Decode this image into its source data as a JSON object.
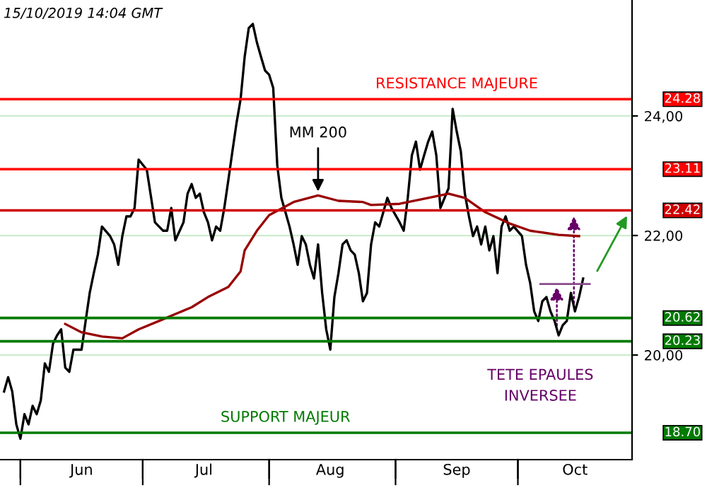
{
  "chart_data": {
    "type": "line",
    "annotations": [
      "15/10/2019 14:04 GMT",
      {
        "text": "MM 200",
        "x": "2019-08-13",
        "y": 22.67
      },
      {
        "text": "RESISTANCE MAJEURE",
        "x": "2019-09-16",
        "y": 24.28
      },
      {
        "text": "SUPPORT MAJEUR",
        "x": "2019-08-05",
        "y": 18.7
      },
      "TETE EPAULES\nINVERSEE"
    ],
    "series": [
      {
        "color": "#000000",
        "x": [
          "2019-05-28",
          "2019-05-29",
          "2019-05-30",
          "2019-05-31",
          "2019-06-01",
          "2019-06-02",
          "2019-06-03",
          "2019-06-04",
          "2019-06-05",
          "2019-06-06",
          "2019-06-07",
          "2019-06-08",
          "2019-06-09",
          "2019-06-10",
          "2019-06-11",
          "2019-06-12",
          "2019-06-13",
          "2019-06-14",
          "2019-06-16",
          "2019-06-17",
          "2019-06-18",
          "2019-06-19",
          "2019-06-20",
          "2019-06-21",
          "2019-06-23",
          "2019-06-24",
          "2019-06-25",
          "2019-06-26",
          "2019-06-27",
          "2019-06-28",
          "2019-06-29",
          "2019-06-30",
          "2019-07-02",
          "2019-07-04",
          "2019-07-05",
          "2019-07-06",
          "2019-07-07",
          "2019-07-08",
          "2019-07-09",
          "2019-07-11",
          "2019-07-12",
          "2019-07-13",
          "2019-07-14",
          "2019-07-15",
          "2019-07-16",
          "2019-07-17",
          "2019-07-18",
          "2019-07-19",
          "2019-07-20",
          "2019-07-21",
          "2019-07-22",
          "2019-07-23",
          "2019-07-24",
          "2019-07-25",
          "2019-07-26",
          "2019-07-27",
          "2019-07-28",
          "2019-07-29",
          "2019-07-30",
          "2019-07-31",
          "2019-08-01",
          "2019-08-02",
          "2019-08-03",
          "2019-08-04",
          "2019-08-05",
          "2019-08-06",
          "2019-08-07",
          "2019-08-08",
          "2019-08-09",
          "2019-08-10",
          "2019-08-11",
          "2019-08-12",
          "2019-08-13",
          "2019-08-14",
          "2019-08-15",
          "2019-08-16",
          "2019-08-17",
          "2019-08-18",
          "2019-08-19",
          "2019-08-20",
          "2019-08-21",
          "2019-08-22",
          "2019-08-23",
          "2019-08-24",
          "2019-08-25",
          "2019-08-26",
          "2019-08-27",
          "2019-08-28",
          "2019-08-29",
          "2019-08-30",
          "2019-08-31",
          "2019-09-02",
          "2019-09-03",
          "2019-09-04",
          "2019-09-05",
          "2019-09-06",
          "2019-09-07",
          "2019-09-08",
          "2019-09-09",
          "2019-09-10",
          "2019-09-11",
          "2019-09-12",
          "2019-09-14",
          "2019-09-15",
          "2019-09-16",
          "2019-09-17",
          "2019-09-18",
          "2019-09-19",
          "2019-09-20",
          "2019-09-21",
          "2019-09-22",
          "2019-09-23",
          "2019-09-24",
          "2019-09-25",
          "2019-09-26",
          "2019-09-27",
          "2019-09-28",
          "2019-09-29",
          "2019-09-30",
          "2019-10-02",
          "2019-10-03",
          "2019-10-04",
          "2019-10-05",
          "2019-10-06",
          "2019-10-07",
          "2019-10-08",
          "2019-10-09",
          "2019-10-10",
          "2019-10-11",
          "2019-10-12",
          "2019-10-13",
          "2019-10-14",
          "2019-10-15",
          "2019-10-16",
          "2019-10-17"
        ],
        "values": [
          19.39,
          19.63,
          19.39,
          18.84,
          18.6,
          19.01,
          18.84,
          19.15,
          19.01,
          19.24,
          19.86,
          19.72,
          20.19,
          20.33,
          20.43,
          19.79,
          19.72,
          20.09,
          20.09,
          20.57,
          21.04,
          21.37,
          21.68,
          22.15,
          21.99,
          21.85,
          21.51,
          21.99,
          22.32,
          22.32,
          22.46,
          23.27,
          23.1,
          22.22,
          22.15,
          22.08,
          22.08,
          22.46,
          21.92,
          22.22,
          22.7,
          22.86,
          22.63,
          22.7,
          22.39,
          22.22,
          21.92,
          22.15,
          22.08,
          22.46,
          22.93,
          23.41,
          23.88,
          24.28,
          24.99,
          25.47,
          25.54,
          25.23,
          24.99,
          24.76,
          24.69,
          24.47,
          23.17,
          22.63,
          22.39,
          22.15,
          21.85,
          21.51,
          21.99,
          21.85,
          21.51,
          21.28,
          21.85,
          21.04,
          20.43,
          20.09,
          20.97,
          21.37,
          21.85,
          21.92,
          21.75,
          21.68,
          21.37,
          20.9,
          21.04,
          21.85,
          22.22,
          22.15,
          22.39,
          22.63,
          22.46,
          22.22,
          22.08,
          22.63,
          23.34,
          23.57,
          23.1,
          23.34,
          23.57,
          23.74,
          23.34,
          22.46,
          22.79,
          24.12,
          23.74,
          23.41,
          22.7,
          22.32,
          21.99,
          22.15,
          21.85,
          22.15,
          21.75,
          21.99,
          21.37,
          22.15,
          22.32,
          22.08,
          22.15,
          21.99,
          21.51,
          21.21,
          20.73,
          20.57,
          20.9,
          20.97,
          20.73,
          20.57,
          20.33,
          20.5,
          20.57,
          21.04,
          20.73,
          20.97,
          21.28
        ]
      },
      {
        "color": "#990000",
        "x": [
          "2019-06-12",
          "2019-06-16",
          "2019-06-21",
          "2019-06-26",
          "2019-06-30",
          "2019-07-05",
          "2019-07-13",
          "2019-07-17",
          "2019-07-22",
          "2019-07-25",
          "2019-07-26",
          "2019-07-29",
          "2019-08-01",
          "2019-08-07",
          "2019-08-13",
          "2019-08-18",
          "2019-08-24",
          "2019-08-26",
          "2019-09-02",
          "2019-09-09",
          "2019-09-14",
          "2019-09-18",
          "2019-09-23",
          "2019-09-29",
          "2019-10-04",
          "2019-10-11",
          "2019-10-16"
        ],
        "values": [
          20.52,
          20.38,
          20.31,
          20.28,
          20.43,
          20.57,
          20.8,
          20.97,
          21.14,
          21.4,
          21.75,
          22.08,
          22.34,
          22.56,
          22.67,
          22.58,
          22.56,
          22.51,
          22.53,
          22.63,
          22.7,
          22.63,
          22.39,
          22.2,
          22.08,
          22.01,
          21.99
        ]
      }
    ],
    "xlim": [
      "2019-05-27",
      "2019-10-29"
    ],
    "xticks": [
      {
        "value": "2019-06-01",
        "label": null
      },
      {
        "value": "2019-06-16",
        "label": "Jun"
      },
      {
        "value": "2019-07-01",
        "label": null
      },
      {
        "value": "2019-07-16",
        "label": "Jul"
      },
      {
        "value": "2019-08-01",
        "label": null
      },
      {
        "value": "2019-08-16",
        "label": "Aug"
      },
      {
        "value": "2019-09-01",
        "label": null
      },
      {
        "value": "2019-09-16",
        "label": "Sep"
      },
      {
        "value": "2019-10-01",
        "label": null
      },
      {
        "value": "2019-10-15",
        "label": "Oct"
      }
    ],
    "ylim": [
      18.25,
      25.94
    ],
    "yticks": [
      {
        "value": 20,
        "label": "20,00"
      },
      {
        "value": 22,
        "label": "22,00"
      },
      {
        "value": 24,
        "label": "24,00"
      }
    ],
    "grid": "y",
    "ref_lines": [
      {
        "axis": "y",
        "value": 24.28,
        "label": "24.28",
        "color": "#ff0000"
      },
      {
        "axis": "y",
        "value": 23.11,
        "label": "23.11",
        "color": "#ff0000"
      },
      {
        "axis": "y",
        "value": 22.42,
        "label": "22.42",
        "color": "#d00000"
      },
      {
        "axis": "y",
        "value": 20.62,
        "label": "20.62",
        "color": "#007a00"
      },
      {
        "axis": "y",
        "value": 20.23,
        "label": "20.23",
        "color": "#007a00"
      },
      {
        "axis": "y",
        "value": 18.7,
        "label": "18.70",
        "color": "#007a00"
      }
    ]
  }
}
